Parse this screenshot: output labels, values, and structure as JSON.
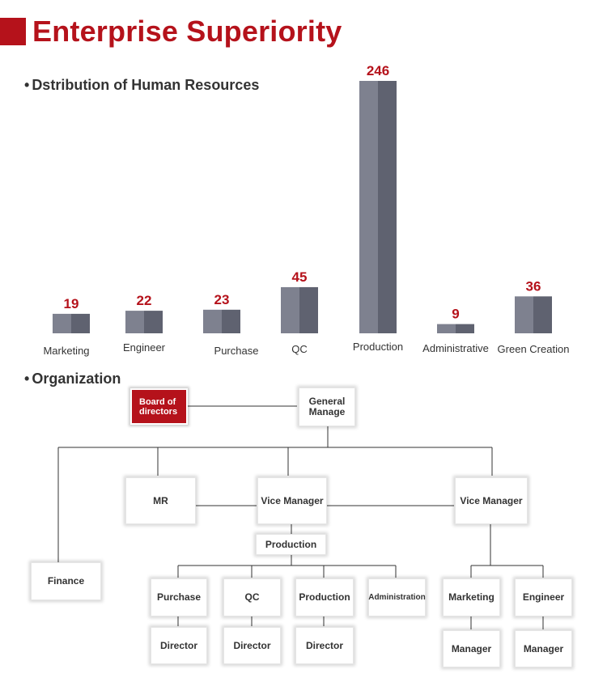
{
  "header": {
    "title": "Enterprise Superiority"
  },
  "sections": {
    "distribution": "Dstribution of Human Resources",
    "organization": "Organization"
  },
  "colors": {
    "accent": "#b5121b",
    "bar_light": "#7e818f",
    "bar_dark": "#5f6270",
    "label_red": "#b5121b"
  },
  "chart_data": {
    "type": "bar",
    "title": "Dstribution of Human Resources",
    "categories": [
      "Marketing",
      "Engineer",
      "Purchase",
      "QC",
      "Production",
      "Administrative",
      "Green Creation"
    ],
    "values": [
      19,
      22,
      23,
      45,
      246,
      9,
      36
    ],
    "ylim": [
      0,
      246
    ],
    "grid": false,
    "legend": "none"
  },
  "org": {
    "board": "Board of directors",
    "general": "General Manage",
    "mr": "MR",
    "vice1": "Vice Manager",
    "vice2": "Vice Manager",
    "production": "Production",
    "finance": "Finance",
    "purchase": "Purchase",
    "qc": "QC",
    "production2": "Production",
    "administration": "Administration",
    "marketing": "Marketing",
    "engineer": "Engineer",
    "director1": "Director",
    "director2": "Director",
    "director3": "Director",
    "manager1": "Manager",
    "manager2": "Manager"
  }
}
